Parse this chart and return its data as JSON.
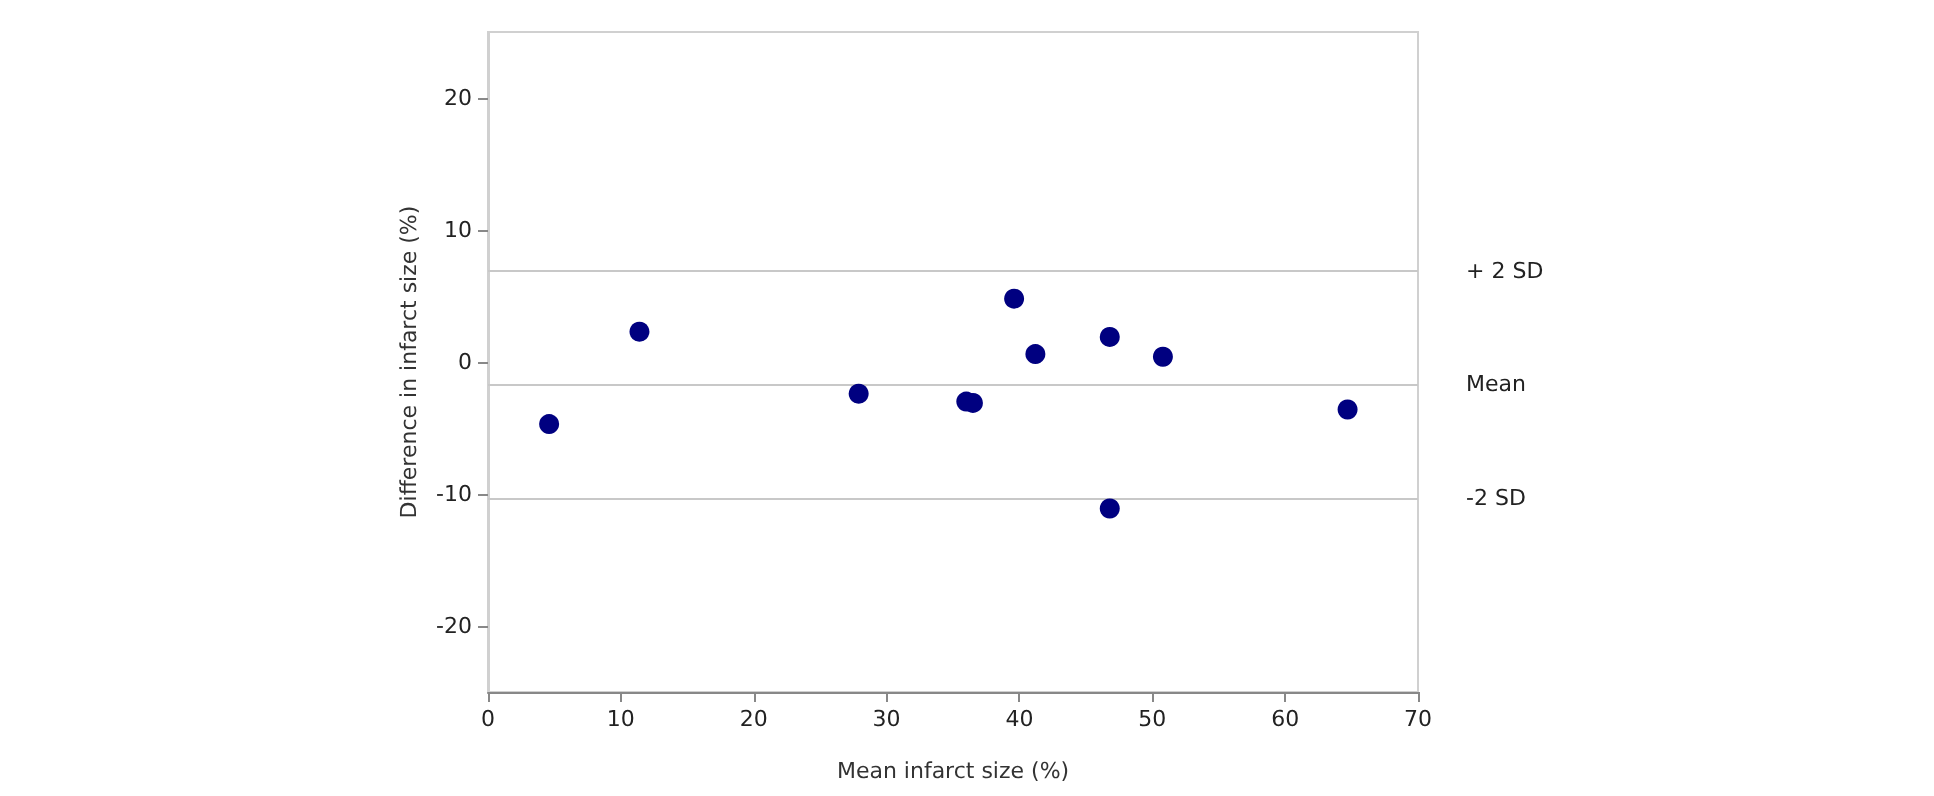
{
  "chart_data": {
    "type": "scatter",
    "xlabel": "Mean infarct size (%)",
    "ylabel": "Difference in infarct size (%)",
    "x": [
      4.6,
      11.4,
      27.9,
      36.0,
      36.5,
      39.6,
      41.2,
      46.8,
      46.8,
      50.8,
      64.7
    ],
    "series": [
      {
        "color": "#000080",
        "values": [
          -4.7,
          2.3,
          -2.4,
          -3.0,
          -3.1,
          4.8,
          0.6,
          1.9,
          -11.1,
          0.4,
          -3.6
        ]
      }
    ],
    "xlim": [
      0,
      70
    ],
    "xticks": [
      0,
      10,
      20,
      30,
      40,
      50,
      60,
      70
    ],
    "ylim": [
      -25,
      25
    ],
    "yticks": [
      -20,
      -10,
      0,
      10,
      20
    ],
    "ref_lines": [
      {
        "axis": "y",
        "value": 6.9,
        "label": "+ 2 SD",
        "color": "#c8c8c8"
      },
      {
        "axis": "y",
        "value": -1.7,
        "label": "Mean",
        "color": "#c8c8c8"
      },
      {
        "axis": "y",
        "value": -10.3,
        "label": "-2 SD",
        "color": "#c8c8c8"
      }
    ],
    "grid": false,
    "marker": "circle"
  }
}
